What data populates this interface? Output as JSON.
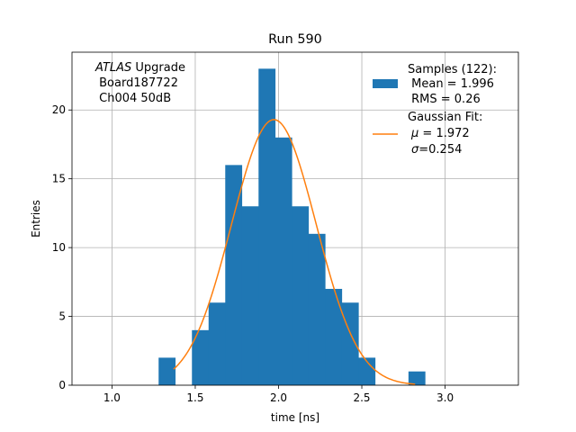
{
  "chart_data": {
    "type": "bar",
    "title": "Run 590",
    "xlabel": "time [ns]",
    "ylabel": "Entries",
    "xlim": [
      0.76,
      3.44
    ],
    "ylim": [
      0,
      24.2
    ],
    "xticks": [
      1.0,
      1.5,
      2.0,
      2.5,
      3.0
    ],
    "xtick_labels": [
      "1.0",
      "1.5",
      "2.0",
      "2.5",
      "3.0"
    ],
    "yticks": [
      0,
      5,
      10,
      15,
      20
    ],
    "ytick_labels": [
      "0",
      "5",
      "10",
      "15",
      "20"
    ],
    "grid": true,
    "bin_width": 0.1,
    "histogram": {
      "name": "Samples (122):",
      "color": "#1f77b4",
      "bin_starts": [
        1.28,
        1.38,
        1.48,
        1.58,
        1.68,
        1.78,
        1.88,
        1.98,
        2.08,
        2.18,
        2.28,
        2.38,
        2.48,
        2.58,
        2.68,
        2.78
      ],
      "counts": [
        2,
        0,
        4,
        6,
        16,
        13,
        23,
        18,
        13,
        11,
        7,
        6,
        2,
        0,
        0,
        1
      ]
    },
    "fit": {
      "name": "Gaussian Fit:",
      "color": "#ff7f0e",
      "mu": 1.972,
      "sigma": 0.254,
      "amplitude": 19.3,
      "x_range": [
        1.37,
        2.82
      ]
    },
    "legend": {
      "placement": "top-right",
      "samples_title": "Samples (122):",
      "samples_mean": " Mean = 1.996",
      "samples_rms": " RMS = 0.26",
      "fit_title": "Gaussian Fit:",
      "fit_mu_symbol": "μ",
      "fit_mu_value": " = 1.972",
      "fit_sigma_symbol": "σ",
      "fit_sigma_value": "=0.254"
    },
    "annotation": {
      "atlas": "ATLAS",
      "upgrade": " Upgrade",
      "board": " Board187722",
      "channel": " Ch004 50dB"
    }
  }
}
